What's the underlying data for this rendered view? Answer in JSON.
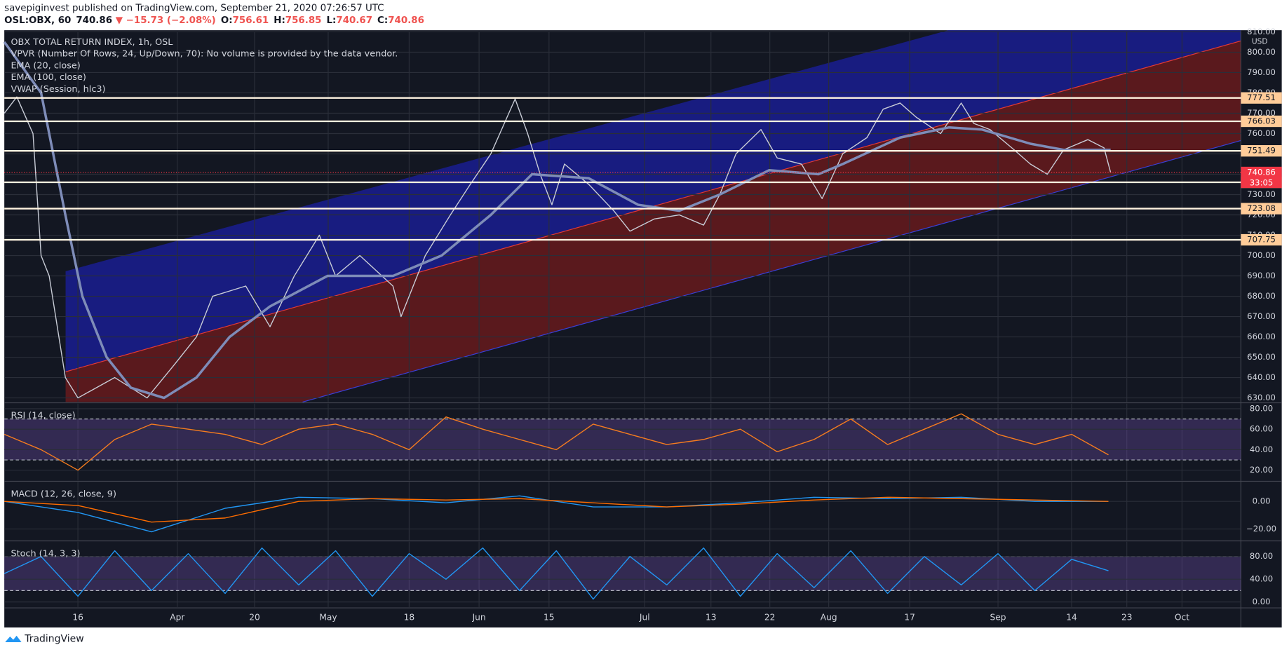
{
  "header": {
    "published": "savepiginvest published on TradingView.com, September 21, 2020 07:26:57 UTC",
    "symbol": "OSL:OBX, 60",
    "last": "740.86",
    "change": "▼ −15.73 (−2.08%)",
    "ohlc": [
      {
        "label": "O:",
        "value": "756.61"
      },
      {
        "label": "H:",
        "value": "756.85"
      },
      {
        "label": "L:",
        "value": "740.67"
      },
      {
        "label": "C:",
        "value": "740.86"
      }
    ]
  },
  "footer": {
    "brand": "TradingView"
  },
  "chart_data": [
    {
      "type": "line",
      "title": "OBX TOTAL RETURN INDEX, 1h, OSL",
      "unit": "USD",
      "legend": [
        "VPVR (Number Of Rows, 24, Up/Down, 70): No volume is provided by the data vendor.",
        "EMA (20, close)",
        "EMA (100, close)",
        "VWAP (Session, hlc3)"
      ],
      "xlim": [
        0,
        168
      ],
      "xticks": [
        {
          "value": 10,
          "label": "16"
        },
        {
          "value": 23.5,
          "label": "Apr"
        },
        {
          "value": 34,
          "label": "20"
        },
        {
          "value": 44,
          "label": "May"
        },
        {
          "value": 55,
          "label": "18"
        },
        {
          "value": 64.5,
          "label": "Jun"
        },
        {
          "value": 74,
          "label": "15"
        },
        {
          "value": 87,
          "label": "Jul"
        },
        {
          "value": 96,
          "label": "13"
        },
        {
          "value": 104,
          "label": "22"
        },
        {
          "value": 112,
          "label": "Aug"
        },
        {
          "value": 123,
          "label": "17"
        },
        {
          "value": 135,
          "label": "Sep"
        },
        {
          "value": 145,
          "label": "14"
        },
        {
          "value": 152.5,
          "label": "23"
        },
        {
          "value": 160,
          "label": "Oct"
        }
      ],
      "ylim": [
        628,
        810
      ],
      "yticks": [
        {
          "value": 630,
          "label": "630.00"
        },
        {
          "value": 640,
          "label": "640.00"
        },
        {
          "value": 650,
          "label": "650.00"
        },
        {
          "value": 660,
          "label": "660.00"
        },
        {
          "value": 670,
          "label": "670.00"
        },
        {
          "value": 680,
          "label": "680.00"
        },
        {
          "value": 690,
          "label": "690.00"
        },
        {
          "value": 700,
          "label": "700.00"
        },
        {
          "value": 710,
          "label": "710.00"
        },
        {
          "value": 720,
          "label": "720.00"
        },
        {
          "value": 730,
          "label": "730.00"
        },
        {
          "value": 740,
          "label": "740.00"
        },
        {
          "value": 750,
          "label": "750.00"
        },
        {
          "value": 760,
          "label": "760.00"
        },
        {
          "value": 770,
          "label": "770.00"
        },
        {
          "value": 780,
          "label": "780.00"
        },
        {
          "value": 790,
          "label": "790.00"
        },
        {
          "value": 800,
          "label": "800.00"
        },
        {
          "value": 810,
          "label": "810.00"
        }
      ],
      "grid": true,
      "series": [
        {
          "color": "#c8ccd6",
          "x": [
            0,
            1.7,
            3.9,
            5,
            6.1,
            8.3,
            10,
            15,
            19.4,
            22.8,
            26.1,
            28.3,
            32.8,
            36.1,
            39.4,
            42.8,
            45,
            48.3,
            52.8,
            53.9,
            57.2,
            60.6,
            63.3,
            66.1,
            68.3,
            69.4,
            71.1,
            72.8,
            74.4,
            76.1,
            79.4,
            82.8,
            85,
            88.3,
            91.7,
            95,
            97.2,
            99.4,
            102.8,
            105,
            108.3,
            111.1,
            113.9,
            117.2,
            119.4,
            121.7,
            123.9,
            127.2,
            130,
            131.7,
            133.9,
            137.2,
            139.4,
            141.7,
            143.9,
            147.2,
            149.4,
            150.3
          ],
          "values": [
            770,
            778,
            760,
            700,
            690,
            640,
            630,
            640,
            630,
            645,
            660,
            680,
            685,
            665,
            690,
            710,
            690,
            700,
            685,
            670,
            700,
            720,
            735,
            750,
            768,
            777,
            760,
            740,
            725,
            745,
            735,
            722,
            712,
            718,
            720,
            715,
            730,
            750,
            762,
            748,
            745,
            728,
            750,
            758,
            772,
            775,
            768,
            760,
            775,
            765,
            762,
            752,
            745,
            740,
            752,
            757,
            753,
            740.86
          ]
        },
        {
          "color": "#7e8cb8",
          "x": [
            0,
            5,
            8.3,
            10.6,
            13.9,
            17.2,
            21.7,
            26.1,
            30.6,
            36.1,
            43.9,
            52.8,
            59.4,
            66.1,
            71.7,
            79.4,
            86.1,
            91.7,
            97.2,
            103.9,
            110.6,
            113.9,
            121.7,
            128.3,
            132.8,
            139.4,
            143.9,
            150.3
          ],
          "values": [
            805,
            780,
            720,
            680,
            650,
            635,
            630,
            640,
            660,
            675,
            690,
            690,
            700,
            720,
            740,
            738,
            725,
            722,
            730,
            742,
            740,
            745,
            758,
            763,
            762,
            755,
            752,
            752
          ]
        }
      ],
      "levels": [
        777.51,
        766.03,
        751.49,
        736.03,
        723.08,
        707.75
      ],
      "level_color": "#ffcc99",
      "current": {
        "value": 740.86,
        "color": "#f23645",
        "countdown": "33:05"
      }
    },
    {
      "type": "line",
      "title": "RSI (14, close)",
      "ylim": [
        10,
        85
      ],
      "yticks": [
        {
          "value": 20,
          "label": "20.00"
        },
        {
          "value": 40,
          "label": "40.00"
        },
        {
          "value": 60,
          "label": "60.00"
        },
        {
          "value": 80,
          "label": "80.00"
        }
      ],
      "bands": [
        30,
        70
      ],
      "band_color": "#7e57c2",
      "series": [
        {
          "color": "#f57c1f",
          "x": [
            0,
            5,
            10,
            15,
            20,
            25,
            30,
            35,
            40,
            45,
            50,
            55,
            60,
            65,
            70,
            75,
            80,
            85,
            90,
            95,
            100,
            105,
            110,
            115,
            120,
            125,
            130,
            135,
            140,
            145,
            150
          ],
          "values": [
            55,
            40,
            20,
            50,
            65,
            60,
            55,
            45,
            60,
            65,
            55,
            40,
            72,
            60,
            50,
            40,
            65,
            55,
            45,
            50,
            60,
            38,
            50,
            70,
            45,
            60,
            75,
            55,
            45,
            55,
            35
          ]
        }
      ]
    },
    {
      "type": "line",
      "title": "MACD (12, 26, close, 9)",
      "ylim": [
        -28,
        14
      ],
      "yticks": [
        {
          "value": -20,
          "label": "−20.00"
        },
        {
          "value": 0,
          "label": "0.00"
        }
      ],
      "series": [
        {
          "color": "#2196f3",
          "x": [
            0,
            10,
            20,
            30,
            40,
            50,
            60,
            70,
            80,
            90,
            100,
            110,
            120,
            130,
            140,
            150
          ],
          "values": [
            0,
            -8,
            -22,
            -5,
            3,
            2,
            -1,
            4,
            -4,
            -4,
            -1,
            3,
            2,
            3,
            0,
            0
          ]
        },
        {
          "color": "#ff6d00",
          "x": [
            0,
            10,
            20,
            30,
            40,
            50,
            60,
            70,
            80,
            90,
            100,
            110,
            120,
            130,
            140,
            150
          ],
          "values": [
            0,
            -3,
            -15,
            -12,
            0,
            2,
            1,
            2,
            -1,
            -4,
            -2,
            1,
            3,
            2,
            1,
            0
          ]
        }
      ]
    },
    {
      "type": "line",
      "title": "Stoch (14, 3, 3)",
      "ylim": [
        -9,
        106
      ],
      "yticks": [
        {
          "value": 0,
          "label": "0.00"
        },
        {
          "value": 40,
          "label": "40.00"
        },
        {
          "value": 80,
          "label": "80.00"
        }
      ],
      "bands": [
        20,
        80
      ],
      "band_color": "#7e57c2",
      "series": [
        {
          "color": "#2196f3",
          "x": [
            0,
            5,
            10,
            15,
            20,
            25,
            30,
            35,
            40,
            45,
            50,
            55,
            60,
            65,
            70,
            75,
            80,
            85,
            90,
            95,
            100,
            105,
            110,
            115,
            120,
            125,
            130,
            135,
            140,
            145,
            150
          ],
          "values": [
            50,
            80,
            10,
            90,
            20,
            85,
            15,
            95,
            30,
            90,
            10,
            85,
            40,
            95,
            20,
            90,
            5,
            80,
            30,
            95,
            10,
            85,
            25,
            90,
            15,
            80,
            30,
            85,
            20,
            75,
            55
          ]
        }
      ]
    }
  ]
}
